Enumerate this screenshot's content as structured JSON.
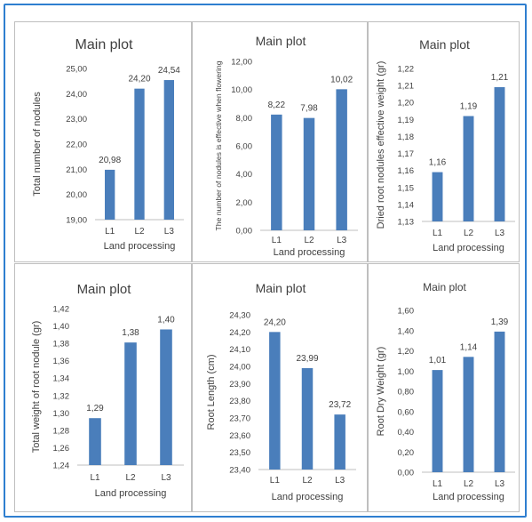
{
  "colors": {
    "bar": "#4a7ebb",
    "axis": "#bfbfbf",
    "text": "#404040",
    "frame": "#2f7fd0"
  },
  "chart_data": [
    {
      "type": "bar",
      "title": "Main plot",
      "xlabel": "Land processing",
      "ylabel": "Total number of nodules",
      "categories": [
        "L1",
        "L2",
        "L3"
      ],
      "values": [
        20.98,
        24.2,
        24.54
      ],
      "value_labels": [
        "20,98",
        "24,20",
        "24,54"
      ],
      "ylim": [
        19,
        25
      ],
      "ytick_values": [
        19,
        20,
        21,
        22,
        23,
        24,
        25
      ],
      "ytick_labels": [
        "19,00",
        "20,00",
        "21,00",
        "22,00",
        "23,00",
        "24,00",
        "25,00"
      ],
      "grid": false
    },
    {
      "type": "bar",
      "title": "Main plot",
      "xlabel": "Land processing",
      "ylabel": "The number of nodules is effective when flowering",
      "categories": [
        "L1",
        "L2",
        "L3"
      ],
      "values": [
        8.22,
        7.98,
        10.02
      ],
      "value_labels": [
        "8,22",
        "7,98",
        "10,02"
      ],
      "ylim": [
        0,
        12
      ],
      "ytick_values": [
        0,
        2,
        4,
        6,
        8,
        10,
        12
      ],
      "ytick_labels": [
        "0,00",
        "2,00",
        "4,00",
        "6,00",
        "8,00",
        "10,00",
        "12,00"
      ],
      "grid": false
    },
    {
      "type": "bar",
      "title": "Main plot",
      "xlabel": "Land processing",
      "ylabel": "Dried root nodules effective weight (gr)",
      "categories": [
        "L1",
        "L2",
        "L3"
      ],
      "values": [
        1.159,
        1.192,
        1.209
      ],
      "value_labels": [
        "1,16",
        "1,19",
        "1,21"
      ],
      "ylim": [
        1.13,
        1.22
      ],
      "ytick_values": [
        1.13,
        1.14,
        1.15,
        1.16,
        1.17,
        1.18,
        1.19,
        1.2,
        1.21,
        1.22
      ],
      "ytick_labels": [
        "1,13",
        "1,14",
        "1,15",
        "1,16",
        "1,17",
        "1,18",
        "1,19",
        "1,20",
        "1,21",
        "1,22"
      ],
      "grid": false
    },
    {
      "type": "bar",
      "title": "Main plot",
      "xlabel": "Land processing",
      "ylabel": "Total weight of root nodule (gr)",
      "categories": [
        "L1",
        "L2",
        "L3"
      ],
      "values": [
        1.294,
        1.381,
        1.396
      ],
      "value_labels": [
        "1,29",
        "1,38",
        "1,40"
      ],
      "ylim": [
        1.24,
        1.42
      ],
      "ytick_values": [
        1.24,
        1.26,
        1.28,
        1.3,
        1.32,
        1.34,
        1.36,
        1.38,
        1.4,
        1.42
      ],
      "ytick_labels": [
        "1,24",
        "1,26",
        "1,28",
        "1,30",
        "1,32",
        "1,34",
        "1,36",
        "1,38",
        "1,40",
        "1,42"
      ],
      "grid": false
    },
    {
      "type": "bar",
      "title": "Main plot",
      "xlabel": "Land processing",
      "ylabel": "Root Length (cm)",
      "categories": [
        "L1",
        "L2",
        "L3"
      ],
      "values": [
        24.2,
        23.99,
        23.72
      ],
      "value_labels": [
        "24,20",
        "23,99",
        "23,72"
      ],
      "ylim": [
        23.4,
        24.3
      ],
      "ytick_values": [
        23.4,
        23.5,
        23.6,
        23.7,
        23.8,
        23.9,
        24.0,
        24.1,
        24.2,
        24.3
      ],
      "ytick_labels": [
        "23,40",
        "23,50",
        "23,60",
        "23,70",
        "23,80",
        "23,90",
        "24,00",
        "24,10",
        "24,20",
        "24,30"
      ],
      "grid": false
    },
    {
      "type": "bar",
      "title": "Main plot",
      "xlabel": "Land processing",
      "ylabel": "Root Dry Weight (gr)",
      "categories": [
        "L1",
        "L2",
        "L3"
      ],
      "values": [
        1.01,
        1.14,
        1.39
      ],
      "value_labels": [
        "1,01",
        "1,14",
        "1,39"
      ],
      "ylim": [
        0,
        1.6
      ],
      "ytick_values": [
        0,
        0.2,
        0.4,
        0.6,
        0.8,
        1.0,
        1.2,
        1.4,
        1.6
      ],
      "ytick_labels": [
        "0,00",
        "0,20",
        "0,40",
        "0,60",
        "0,80",
        "1,00",
        "1,20",
        "1,40",
        "1,60"
      ],
      "grid": false
    }
  ]
}
